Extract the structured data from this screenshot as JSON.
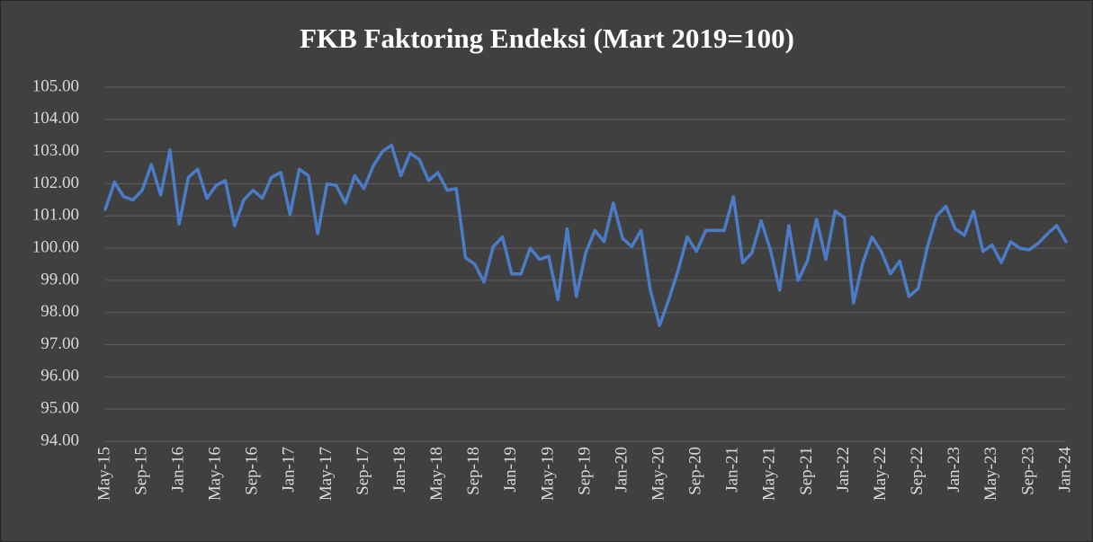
{
  "chart_data": {
    "type": "line",
    "title": "FKB Faktoring Endeksi (Mart 2019=100)",
    "categories": [
      "May-15",
      null,
      null,
      null,
      "Sep-15",
      null,
      null,
      null,
      "Jan-16",
      null,
      null,
      null,
      "May-16",
      null,
      null,
      null,
      "Sep-16",
      null,
      null,
      null,
      "Jan-17",
      null,
      null,
      null,
      "May-17",
      null,
      null,
      null,
      "Sep-17",
      null,
      null,
      null,
      "Jan-18",
      null,
      null,
      null,
      "May-18",
      null,
      null,
      null,
      "Sep-18",
      null,
      null,
      null,
      "Jan-19",
      null,
      null,
      null,
      "May-19",
      null,
      null,
      null,
      "Sep-19",
      null,
      null,
      null,
      "Jan-20",
      null,
      null,
      null,
      "May-20",
      null,
      null,
      null,
      "Sep-20",
      null,
      null,
      null,
      "Jan-21",
      null,
      null,
      null,
      "May-21",
      null,
      null,
      null,
      "Sep-21",
      null,
      null,
      null,
      "Jan-22",
      null,
      null,
      null,
      "May-22",
      null,
      null,
      null,
      "Sep-22",
      null,
      null,
      null,
      "Jan-23",
      null,
      null,
      null,
      "May-23",
      null,
      null,
      null,
      "Sep-23",
      null,
      null,
      null,
      "Jan-24"
    ],
    "values": [
      101.2,
      102.05,
      101.6,
      101.5,
      101.8,
      102.6,
      101.65,
      103.05,
      100.75,
      102.2,
      102.45,
      101.55,
      101.95,
      102.1,
      100.7,
      101.5,
      101.8,
      101.55,
      102.2,
      102.35,
      101.05,
      102.45,
      102.25,
      100.45,
      102.0,
      101.95,
      101.4,
      102.25,
      101.85,
      102.55,
      103.0,
      103.2,
      102.25,
      102.95,
      102.75,
      102.1,
      102.35,
      101.8,
      101.85,
      99.7,
      99.5,
      98.95,
      100.05,
      100.35,
      99.2,
      99.2,
      100.0,
      99.65,
      99.75,
      98.4,
      100.6,
      98.5,
      99.85,
      100.55,
      100.2,
      101.4,
      100.3,
      100.05,
      100.55,
      98.7,
      97.6,
      98.4,
      99.3,
      100.35,
      99.9,
      100.55,
      100.55,
      100.55,
      101.6,
      99.55,
      99.85,
      100.85,
      99.95,
      98.7,
      100.7,
      99.0,
      99.6,
      100.9,
      99.65,
      101.15,
      100.95,
      98.3,
      99.55,
      100.35,
      99.9,
      99.2,
      99.6,
      98.5,
      98.75,
      100.05,
      101.0,
      101.3,
      100.6,
      100.4,
      101.15,
      99.9,
      100.1,
      99.55,
      100.2,
      100.0,
      99.95,
      100.15,
      100.45,
      100.7,
      100.2
    ],
    "color": "#4a7cc7",
    "ylim": [
      94,
      105
    ],
    "yticks": [
      {
        "value": 94,
        "label": "94.00"
      },
      {
        "value": 95,
        "label": "95.00"
      },
      {
        "value": 96,
        "label": "96.00"
      },
      {
        "value": 97,
        "label": "97.00"
      },
      {
        "value": 98,
        "label": "98.00"
      },
      {
        "value": 99,
        "label": "99.00"
      },
      {
        "value": 100,
        "label": "100.00"
      },
      {
        "value": 101,
        "label": "101.00"
      },
      {
        "value": 102,
        "label": "102.00"
      },
      {
        "value": 103,
        "label": "103.00"
      },
      {
        "value": 104,
        "label": "104.00"
      },
      {
        "value": 105,
        "label": "105.00"
      }
    ],
    "grid": true
  }
}
